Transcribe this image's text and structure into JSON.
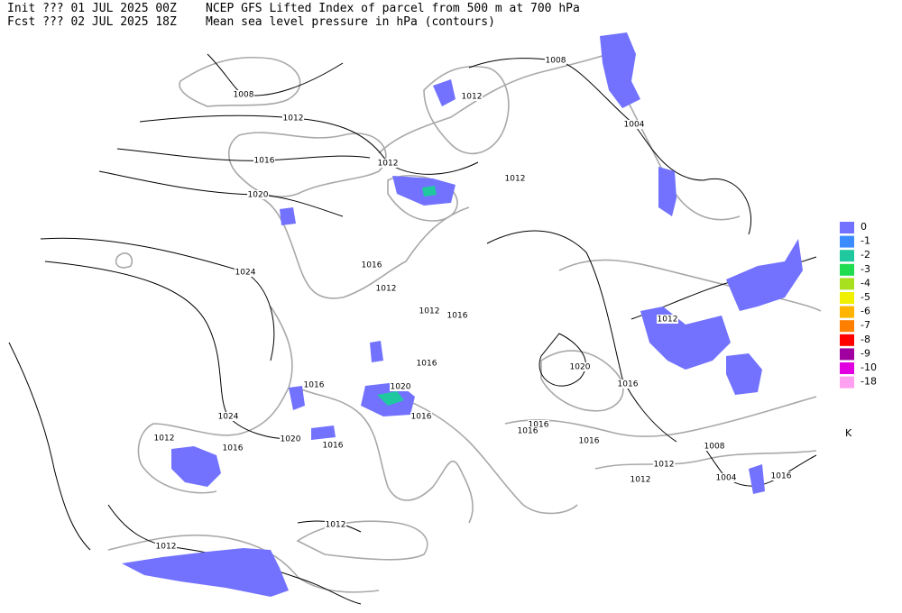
{
  "header": {
    "init": "Init  ??? 01 JUL 2025 00Z",
    "fcst": "Fcst ??? 02 JUL 2025 18Z",
    "title": "NCEP GFS Lifted Index of parcel from 500 m at 700 hPa",
    "subtitle": "Mean sea level pressure in hPa (contours)"
  },
  "legend": {
    "unit": "K",
    "items": [
      {
        "label": "0",
        "color": "#7272ff"
      },
      {
        "label": "-1",
        "color": "#3c8cff"
      },
      {
        "label": "-2",
        "color": "#20c8a0"
      },
      {
        "label": "-3",
        "color": "#20dc50"
      },
      {
        "label": "-4",
        "color": "#a8e020"
      },
      {
        "label": "-5",
        "color": "#f0f000"
      },
      {
        "label": "-6",
        "color": "#ffb400"
      },
      {
        "label": "-7",
        "color": "#ff8000"
      },
      {
        "label": "-8",
        "color": "#ff0000"
      },
      {
        "label": "-9",
        "color": "#a000a0"
      },
      {
        "label": "-10",
        "color": "#e000e0"
      },
      {
        "label": "-18",
        "color": "#ffa0f0"
      }
    ]
  },
  "contour_labels": [
    "1008",
    "1012",
    "1016",
    "1020",
    "1024",
    "1012",
    "1012",
    "1008",
    "1004",
    "1012",
    "1016",
    "1012",
    "1012",
    "1016",
    "1012",
    "1020",
    "1016",
    "1016",
    "1020",
    "1016",
    "1024",
    "1012",
    "1016",
    "1020",
    "1016",
    "1016",
    "1016",
    "1016",
    "1016",
    "1012",
    "1012",
    "1008",
    "1004",
    "1016",
    "1012",
    "1012"
  ]
}
